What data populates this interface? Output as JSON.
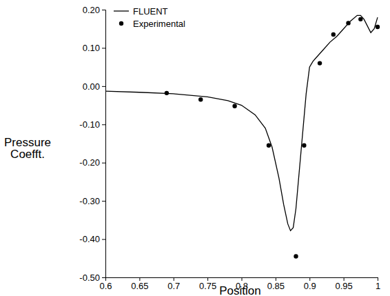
{
  "chart_data": {
    "type": "line",
    "xlabel": "Position",
    "ylabel": "Pressure Coefft.",
    "xlim": [
      0.6,
      1
    ],
    "xticks": [
      0.6,
      0.65,
      0.7,
      0.75,
      0.8,
      0.85,
      0.9,
      0.95,
      1
    ],
    "ylim": [
      -0.5,
      0.2
    ],
    "yticks": [
      {
        "value": -0.5,
        "label": "-0.50"
      },
      {
        "value": -0.4,
        "label": "-0.40"
      },
      {
        "value": -0.3,
        "label": "-0.30"
      },
      {
        "value": -0.2,
        "label": "-0.20"
      },
      {
        "value": -0.1,
        "label": "-0.10"
      },
      {
        "value": 0,
        "label": "0.00"
      },
      {
        "value": 0.1,
        "label": "0.10"
      },
      {
        "value": 0.2,
        "label": "0.20"
      }
    ],
    "legend": "upper left",
    "grid": false,
    "series": [
      {
        "name": "FLUENT",
        "type": "line",
        "color": "#000000",
        "line_style": "solid",
        "x": [
          0.6,
          0.65,
          0.7,
          0.75,
          0.78,
          0.8,
          0.82,
          0.835,
          0.845,
          0.855,
          0.862,
          0.868,
          0.872,
          0.876,
          0.88,
          0.885,
          0.89,
          0.895,
          0.9,
          0.905,
          0.91,
          0.92,
          0.93,
          0.94,
          0.95,
          0.96,
          0.97,
          0.975,
          0.98,
          0.99,
          0.995,
          1.0
        ],
        "values": [
          -0.013,
          -0.016,
          -0.02,
          -0.028,
          -0.038,
          -0.05,
          -0.075,
          -0.11,
          -0.16,
          -0.24,
          -0.31,
          -0.36,
          -0.378,
          -0.37,
          -0.32,
          -0.22,
          -0.12,
          -0.02,
          0.05,
          0.065,
          0.075,
          0.095,
          0.115,
          0.13,
          0.15,
          0.17,
          0.185,
          0.185,
          0.175,
          0.14,
          0.15,
          0.18
        ]
      },
      {
        "name": "Experimental",
        "type": "scatter",
        "color": "#000000",
        "marker": "circle",
        "x": [
          0.69,
          0.74,
          0.79,
          0.84,
          0.88,
          0.892,
          0.915,
          0.935,
          0.957,
          0.975,
          1.0
        ],
        "values": [
          -0.018,
          -0.035,
          -0.052,
          -0.155,
          -0.445,
          -0.155,
          0.06,
          0.135,
          0.165,
          0.175,
          0.155
        ]
      }
    ]
  }
}
